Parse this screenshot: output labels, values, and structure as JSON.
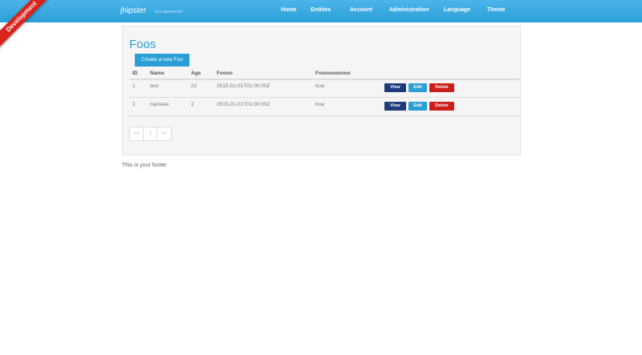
{
  "ribbon": "Development",
  "navbar": {
    "brand": "jhipster",
    "version": "v0.1-SNAPSHOT",
    "items": [
      "Home",
      "Entities",
      "Account",
      "Administration",
      "Language",
      "Theme"
    ]
  },
  "page": {
    "title": "Foos",
    "create_button": "Create a new Foo"
  },
  "table": {
    "headers": [
      "ID",
      "Name",
      "Age",
      "Foooo",
      "Foooooooooo"
    ],
    "rows": [
      [
        "1",
        "test",
        "22",
        "2015-01-01T01:00:00Z",
        "true"
      ],
      [
        "2",
        "nameee",
        "2",
        "2015-01-01T01:00:00Z",
        "true"
      ]
    ],
    "actions": [
      "View",
      "Edit",
      "Delete"
    ]
  },
  "pager": [
    "<<",
    "1",
    ">>"
  ],
  "footer": "This is your footer"
}
